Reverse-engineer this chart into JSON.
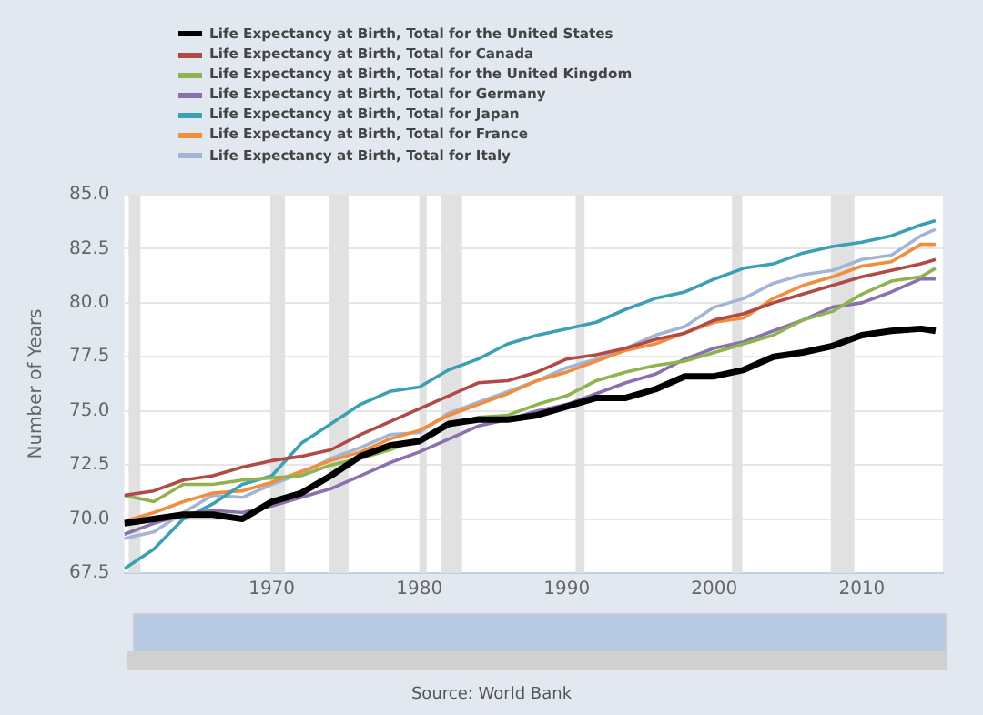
{
  "chart_data": {
    "type": "line",
    "ylabel": "Number of Years",
    "legend": "top",
    "grid": "y",
    "marker": "none",
    "line_style": "solid",
    "annotations": [
      "Source: World Bank"
    ],
    "x": [
      1960,
      1962,
      1964,
      1966,
      1968,
      1970,
      1972,
      1974,
      1976,
      1978,
      1980,
      1982,
      1984,
      1986,
      1988,
      1990,
      1992,
      1994,
      1996,
      1998,
      2000,
      2002,
      2004,
      2006,
      2008,
      2010,
      2012,
      2014,
      2015
    ],
    "xlim": [
      1960,
      2015.5
    ],
    "xticks": [
      1970,
      1980,
      1990,
      2000,
      2010
    ],
    "ylim": [
      67.5,
      85
    ],
    "yticks": [
      67.5,
      {
        "value": 70,
        "label": "70.0"
      },
      72.5,
      {
        "value": 75,
        "label": "75.0"
      },
      77.5,
      {
        "value": 80,
        "label": "80.0"
      },
      82.5,
      {
        "value": 85,
        "label": "85.0"
      }
    ],
    "bands": [
      {
        "axis": "x",
        "from": 1960.3,
        "to": 1961.1,
        "color": "#e1e1e1"
      },
      {
        "axis": "x",
        "from": 1969.9,
        "to": 1970.9,
        "color": "#e1e1e1"
      },
      {
        "axis": "x",
        "from": 1973.9,
        "to": 1975.2,
        "color": "#e1e1e1"
      },
      {
        "axis": "x",
        "from": 1980,
        "to": 1980.5,
        "color": "#e1e1e1"
      },
      {
        "axis": "x",
        "from": 1981.5,
        "to": 1982.9,
        "color": "#e1e1e1"
      },
      {
        "axis": "x",
        "from": 1990.6,
        "to": 1991.2,
        "color": "#e1e1e1"
      },
      {
        "axis": "x",
        "from": 2001.2,
        "to": 2001.9,
        "color": "#e1e1e1"
      },
      {
        "axis": "x",
        "from": 2007.9,
        "to": 2009.5,
        "color": "#e1e1e1"
      }
    ],
    "series": [
      {
        "name": "Life Expectancy at Birth, Total for the United States",
        "color": "#000000",
        "values": [
          69.8,
          70.0,
          70.2,
          70.2,
          70.0,
          70.8,
          71.2,
          72.0,
          72.9,
          73.4,
          73.6,
          74.4,
          74.6,
          74.6,
          74.8,
          75.2,
          75.6,
          75.6,
          76.0,
          76.6,
          76.6,
          76.9,
          77.5,
          77.7,
          78.0,
          78.5,
          78.7,
          78.8,
          78.7
        ]
      },
      {
        "name": "Life Expectancy at Birth, Total for Canada",
        "color": "#b04a46",
        "values": [
          71.1,
          71.3,
          71.8,
          72.0,
          72.4,
          72.7,
          72.9,
          73.2,
          73.9,
          74.5,
          75.1,
          75.7,
          76.3,
          76.4,
          76.8,
          77.4,
          77.6,
          77.9,
          78.3,
          78.6,
          79.2,
          79.5,
          80.0,
          80.4,
          80.8,
          81.2,
          81.5,
          81.8,
          82.0
        ]
      },
      {
        "name": "Life Expectancy at Birth, Total for the United Kingdom",
        "color": "#8fb34f",
        "values": [
          71.1,
          70.8,
          71.6,
          71.6,
          71.8,
          71.9,
          72.0,
          72.5,
          72.8,
          73.2,
          73.7,
          74.3,
          74.7,
          74.8,
          75.3,
          75.7,
          76.4,
          76.8,
          77.1,
          77.3,
          77.7,
          78.1,
          78.5,
          79.2,
          79.6,
          80.4,
          81.0,
          81.2,
          81.6
        ]
      },
      {
        "name": "Life Expectancy at Birth, Total for Germany",
        "color": "#8a70ad",
        "values": [
          69.3,
          69.8,
          70.2,
          70.4,
          70.3,
          70.6,
          71.0,
          71.4,
          72.0,
          72.6,
          73.1,
          73.7,
          74.3,
          74.6,
          75.0,
          75.3,
          75.8,
          76.3,
          76.7,
          77.4,
          77.9,
          78.2,
          78.7,
          79.2,
          79.8,
          80.0,
          80.5,
          81.1,
          81.1
        ]
      },
      {
        "name": "Life Expectancy at Birth, Total for Japan",
        "color": "#3ba0b3",
        "values": [
          67.7,
          68.6,
          70.0,
          70.7,
          71.6,
          72.0,
          73.5,
          74.4,
          75.3,
          75.9,
          76.1,
          76.9,
          77.4,
          78.1,
          78.5,
          78.8,
          79.1,
          79.7,
          80.2,
          80.5,
          81.1,
          81.6,
          81.8,
          82.3,
          82.6,
          82.8,
          83.1,
          83.6,
          83.8
        ]
      },
      {
        "name": "Life Expectancy at Birth, Total for France",
        "color": "#ef8f3d",
        "values": [
          69.9,
          70.3,
          70.8,
          71.2,
          71.3,
          71.7,
          72.2,
          72.7,
          73.1,
          73.7,
          74.1,
          74.8,
          75.3,
          75.8,
          76.4,
          76.8,
          77.3,
          77.8,
          78.1,
          78.6,
          79.1,
          79.3,
          80.2,
          80.8,
          81.2,
          81.7,
          81.9,
          82.7,
          82.7
        ]
      },
      {
        "name": "Life Expectancy at Birth, Total for Italy",
        "color": "#a3b4d4",
        "values": [
          69.1,
          69.4,
          70.3,
          71.1,
          71.0,
          71.6,
          72.1,
          72.8,
          73.3,
          73.9,
          74.0,
          74.9,
          75.4,
          75.9,
          76.4,
          77.0,
          77.4,
          77.9,
          78.5,
          78.9,
          79.8,
          80.2,
          80.9,
          81.3,
          81.5,
          82.0,
          82.2,
          83.1,
          83.4
        ]
      }
    ]
  }
}
